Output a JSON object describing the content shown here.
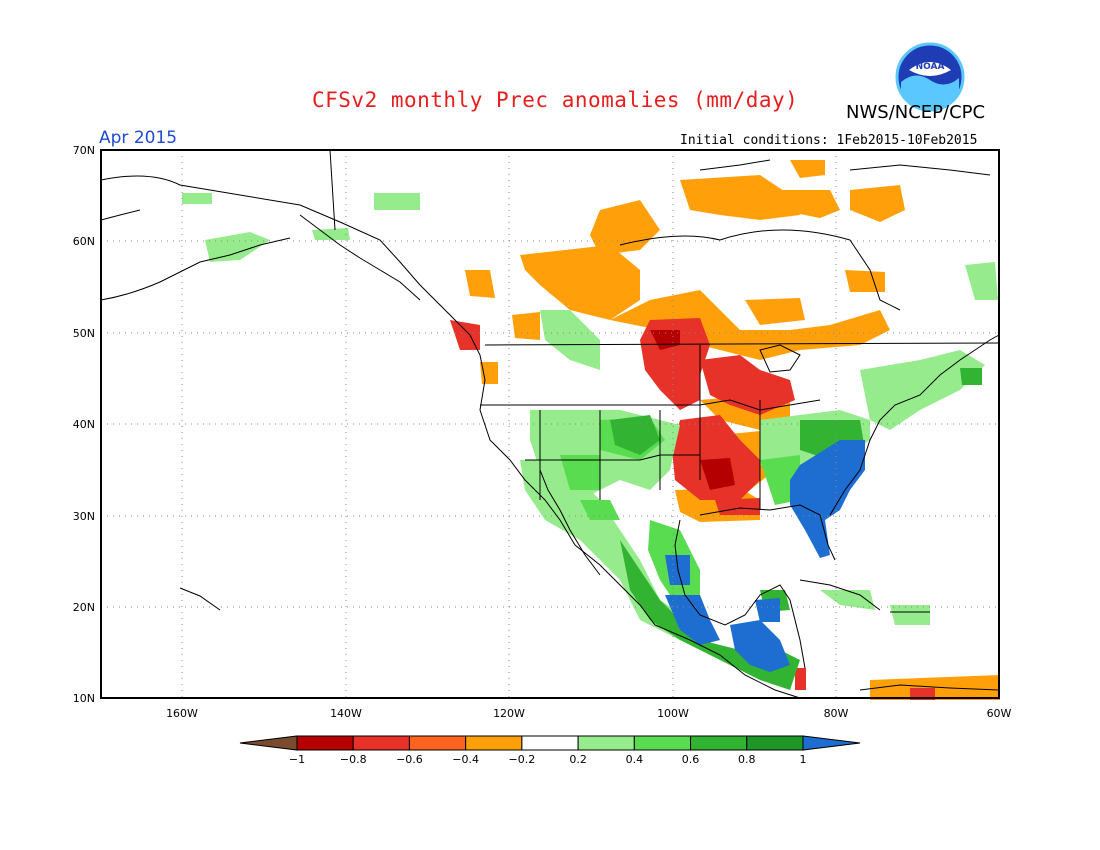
{
  "title": "CFSv2 monthly Prec anomalies (mm/day)",
  "month_label": "Apr 2015",
  "agency": "NWS/NCEP/CPC",
  "initial_conditions": "Initial conditions: 1Feb2015-10Feb2015",
  "logo_text": "NOAA",
  "map": {
    "lat_labels": [
      "70N",
      "60N",
      "50N",
      "40N",
      "30N",
      "20N",
      "10N"
    ],
    "lon_labels": [
      "160W",
      "140W",
      "120W",
      "100W",
      "80W",
      "60W"
    ],
    "grid": true,
    "domain": {
      "lon_range": [
        -170,
        -60
      ],
      "lat_range": [
        10,
        70
      ]
    }
  },
  "colorbar": {
    "tick_labels": [
      "-1",
      "-0.8",
      "-0.6",
      "-0.4",
      "-0.2",
      "0.2",
      "0.4",
      "0.6",
      "0.8",
      "1"
    ],
    "colors": [
      "#7a4b2d",
      "#b40000",
      "#e63228",
      "#ff641e",
      "#ffa00a",
      "#ffffff",
      "#96eb8c",
      "#5adc50",
      "#32b432",
      "#1e9628",
      "#1e6ed2"
    ]
  },
  "anomaly_regions": [
    {
      "name": "north-canada-dry-1",
      "color": "#ffa00a"
    },
    {
      "name": "north-plains-dry-strong",
      "color": "#e63228"
    },
    {
      "name": "southeast-wet-strong",
      "color": "#1e6ed2"
    },
    {
      "name": "mexico-wet",
      "color": "#32b432"
    }
  ]
}
